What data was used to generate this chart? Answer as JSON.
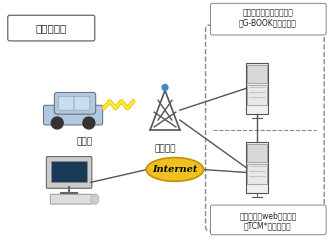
{
  "bg_color": "#ffffff",
  "lease_label": "リース車両",
  "onboard_label": "車載機",
  "mobile_label": "携帯通信",
  "internet_label": "Internet",
  "telematics_label_line1": "テレマティクスセンター",
  "telematics_label_line2": "（G-BOOKセンター）",
  "web_label_line1": "お客様向けwebシステム",
  "web_label_line2": "（TCM*サポート）"
}
